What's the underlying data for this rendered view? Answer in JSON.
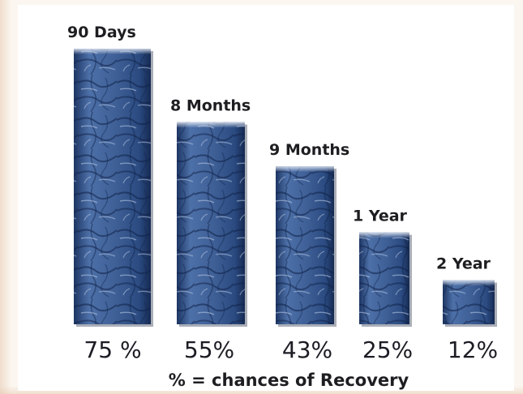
{
  "chart_data": {
    "type": "bar",
    "categories": [
      "90 Days",
      "8 Months",
      "9 Months",
      "1 Year",
      "2 Year"
    ],
    "values": [
      75,
      55,
      43,
      25,
      12
    ],
    "value_labels": [
      "75 %",
      "55%",
      "43%",
      "25%",
      "12%"
    ],
    "caption": "% = chances of Recovery",
    "ylim": [
      0,
      75
    ],
    "grid": false,
    "legend": "none",
    "bar_color": "#3d5f98"
  }
}
